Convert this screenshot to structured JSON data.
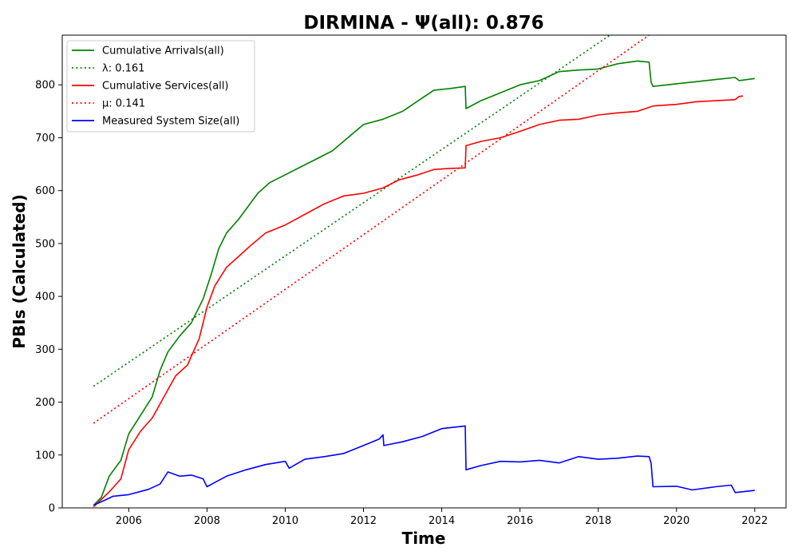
{
  "chart_data": {
    "type": "line",
    "title": "DIRMINA -  Ψ(all): 0.876",
    "xlabel": "Time",
    "ylabel": "PBIs (Calculated)",
    "xlim": [
      2004.3,
      2022.8
    ],
    "ylim": [
      0,
      894
    ],
    "xticks": [
      2006,
      2008,
      2010,
      2012,
      2014,
      2016,
      2018,
      2020,
      2022
    ],
    "yticks": [
      0,
      100,
      200,
      300,
      400,
      500,
      600,
      700,
      800
    ],
    "grid": false,
    "legend_position": "top-left",
    "legend": [
      {
        "label": "Cumulative Arrivals(all)",
        "color": "#008000",
        "style": "solid"
      },
      {
        "label": "λ: 0.161",
        "color": "#008000",
        "style": "dotted"
      },
      {
        "label": "Cumulative Services(all)",
        "color": "#ff0000",
        "style": "solid"
      },
      {
        "label": "μ: 0.141",
        "color": "#ff0000",
        "style": "dotted"
      },
      {
        "label": "Measured System Size(all)",
        "color": "#0000ff",
        "style": "solid"
      }
    ],
    "series": [
      {
        "name": "Cumulative Arrivals(all)",
        "color": "#008000",
        "style": "solid",
        "points": [
          [
            2005.1,
            5
          ],
          [
            2005.3,
            20
          ],
          [
            2005.5,
            60
          ],
          [
            2005.8,
            90
          ],
          [
            2006.0,
            140
          ],
          [
            2006.3,
            175
          ],
          [
            2006.6,
            210
          ],
          [
            2006.8,
            260
          ],
          [
            2007.0,
            295
          ],
          [
            2007.3,
            325
          ],
          [
            2007.6,
            350
          ],
          [
            2007.9,
            395
          ],
          [
            2008.1,
            440
          ],
          [
            2008.3,
            490
          ],
          [
            2008.5,
            520
          ],
          [
            2008.8,
            545
          ],
          [
            2009.0,
            565
          ],
          [
            2009.3,
            595
          ],
          [
            2009.6,
            615
          ],
          [
            2010.0,
            630
          ],
          [
            2010.4,
            645
          ],
          [
            2010.8,
            660
          ],
          [
            2011.2,
            675
          ],
          [
            2011.6,
            700
          ],
          [
            2012.0,
            725
          ],
          [
            2012.5,
            735
          ],
          [
            2013.0,
            750
          ],
          [
            2013.5,
            775
          ],
          [
            2013.8,
            790
          ],
          [
            2014.2,
            793
          ],
          [
            2014.6,
            797
          ],
          [
            2014.62,
            755
          ],
          [
            2015.0,
            770
          ],
          [
            2015.5,
            785
          ],
          [
            2016.0,
            800
          ],
          [
            2016.5,
            808
          ],
          [
            2017.0,
            825
          ],
          [
            2017.5,
            828
          ],
          [
            2018.0,
            830
          ],
          [
            2018.5,
            840
          ],
          [
            2019.0,
            845
          ],
          [
            2019.3,
            843
          ],
          [
            2019.35,
            805
          ],
          [
            2019.4,
            797
          ],
          [
            2020.0,
            802
          ],
          [
            2020.5,
            806
          ],
          [
            2021.0,
            810
          ],
          [
            2021.5,
            814
          ],
          [
            2021.6,
            808
          ],
          [
            2022.0,
            812
          ]
        ]
      },
      {
        "name": "λ: 0.161",
        "color": "#008000",
        "style": "dotted",
        "points": [
          [
            2005.1,
            230
          ],
          [
            2018.3,
            894
          ]
        ]
      },
      {
        "name": "Cumulative Services(all)",
        "color": "#ff0000",
        "style": "solid",
        "points": [
          [
            2005.1,
            2
          ],
          [
            2005.5,
            30
          ],
          [
            2005.8,
            55
          ],
          [
            2006.0,
            110
          ],
          [
            2006.3,
            145
          ],
          [
            2006.6,
            170
          ],
          [
            2006.9,
            210
          ],
          [
            2007.2,
            250
          ],
          [
            2007.5,
            270
          ],
          [
            2007.8,
            320
          ],
          [
            2008.0,
            380
          ],
          [
            2008.2,
            420
          ],
          [
            2008.5,
            455
          ],
          [
            2008.8,
            475
          ],
          [
            2009.1,
            495
          ],
          [
            2009.5,
            520
          ],
          [
            2010.0,
            535
          ],
          [
            2010.5,
            555
          ],
          [
            2011.0,
            575
          ],
          [
            2011.5,
            590
          ],
          [
            2012.0,
            595
          ],
          [
            2012.5,
            605
          ],
          [
            2012.9,
            620
          ],
          [
            2013.4,
            630
          ],
          [
            2013.8,
            640
          ],
          [
            2014.2,
            642
          ],
          [
            2014.6,
            643
          ],
          [
            2014.62,
            685
          ],
          [
            2015.0,
            693
          ],
          [
            2015.5,
            700
          ],
          [
            2016.0,
            712
          ],
          [
            2016.5,
            725
          ],
          [
            2017.0,
            733
          ],
          [
            2017.5,
            735
          ],
          [
            2018.0,
            743
          ],
          [
            2018.5,
            747
          ],
          [
            2019.0,
            750
          ],
          [
            2019.4,
            760
          ],
          [
            2020.0,
            763
          ],
          [
            2020.5,
            768
          ],
          [
            2021.0,
            770
          ],
          [
            2021.5,
            772
          ],
          [
            2021.6,
            778
          ],
          [
            2021.7,
            779
          ]
        ]
      },
      {
        "name": "μ: 0.141",
        "color": "#ff0000",
        "style": "dotted",
        "points": [
          [
            2005.1,
            160
          ],
          [
            2019.3,
            894
          ]
        ]
      },
      {
        "name": "Measured System Size(all)",
        "color": "#0000ff",
        "style": "solid",
        "points": [
          [
            2005.1,
            5
          ],
          [
            2005.4,
            15
          ],
          [
            2005.6,
            22
          ],
          [
            2006.0,
            25
          ],
          [
            2006.5,
            35
          ],
          [
            2006.8,
            45
          ],
          [
            2007.0,
            68
          ],
          [
            2007.3,
            60
          ],
          [
            2007.6,
            62
          ],
          [
            2007.9,
            55
          ],
          [
            2008.0,
            40
          ],
          [
            2008.2,
            48
          ],
          [
            2008.5,
            60
          ],
          [
            2009.0,
            72
          ],
          [
            2009.5,
            82
          ],
          [
            2010.0,
            88
          ],
          [
            2010.1,
            75
          ],
          [
            2010.5,
            92
          ],
          [
            2011.0,
            97
          ],
          [
            2011.5,
            103
          ],
          [
            2012.0,
            118
          ],
          [
            2012.4,
            130
          ],
          [
            2012.5,
            138
          ],
          [
            2012.52,
            118
          ],
          [
            2013.0,
            125
          ],
          [
            2013.5,
            135
          ],
          [
            2014.0,
            150
          ],
          [
            2014.6,
            155
          ],
          [
            2014.62,
            72
          ],
          [
            2015.0,
            80
          ],
          [
            2015.5,
            88
          ],
          [
            2016.0,
            87
          ],
          [
            2016.5,
            90
          ],
          [
            2017.0,
            85
          ],
          [
            2017.5,
            97
          ],
          [
            2018.0,
            92
          ],
          [
            2018.5,
            94
          ],
          [
            2019.0,
            98
          ],
          [
            2019.3,
            97
          ],
          [
            2019.35,
            85
          ],
          [
            2019.4,
            40
          ],
          [
            2020.0,
            41
          ],
          [
            2020.4,
            34
          ],
          [
            2021.0,
            40
          ],
          [
            2021.4,
            43
          ],
          [
            2021.5,
            29
          ],
          [
            2022.0,
            33
          ]
        ]
      }
    ]
  }
}
